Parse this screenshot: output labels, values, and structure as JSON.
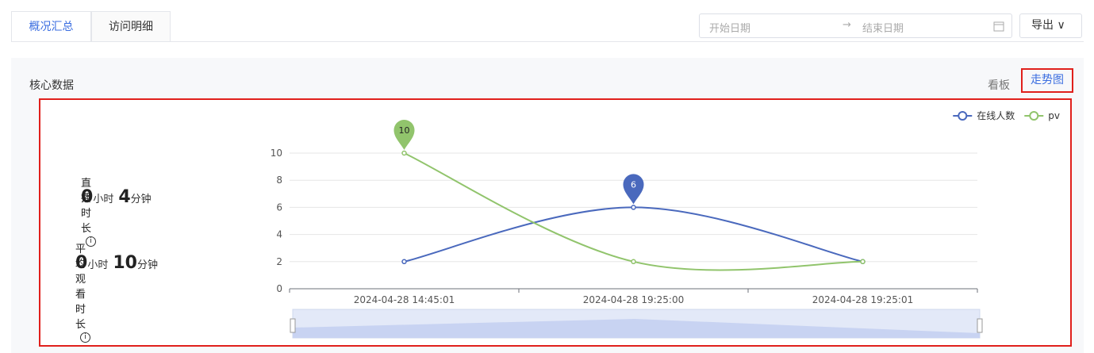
{
  "tabs": [
    "概况汇总",
    "访问明细"
  ],
  "date_range": {
    "start": "开始日期",
    "end": "结束日期"
  },
  "export": "导出",
  "section": {
    "title": "核心数据",
    "views": [
      "看板",
      "走势图"
    ]
  },
  "stats": [
    {
      "label": "直播时长",
      "hours": 0,
      "hours_unit": "小时",
      "minutes": 4,
      "minutes_unit": "分钟"
    },
    {
      "label": "平均观看时长",
      "hours": 0,
      "hours_unit": "小时",
      "minutes": 10,
      "minutes_unit": "分钟"
    }
  ],
  "chart_data": {
    "type": "line",
    "categories": [
      "2024-04-28 14:45:01",
      "2024-04-28 19:25:00",
      "2024-04-28 19:25:01"
    ],
    "series": [
      {
        "name": "在线人数",
        "color": "#4a69bd",
        "values": [
          2,
          6,
          2
        ]
      },
      {
        "name": "pv",
        "color": "#91c46c",
        "values": [
          10,
          2,
          2
        ]
      }
    ],
    "ylim": [
      0,
      10
    ],
    "yticks": [
      0,
      2,
      4,
      6,
      8,
      10
    ],
    "grid": true,
    "legend": "top-right"
  }
}
